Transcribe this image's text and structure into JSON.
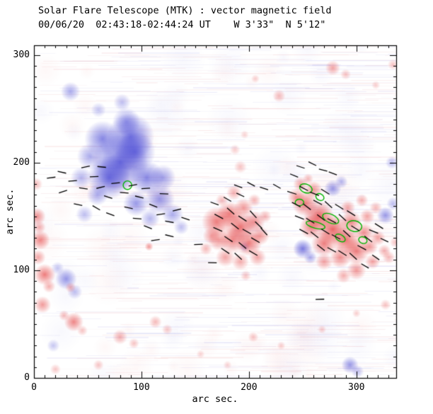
{
  "chart_data": {
    "type": "heatmap",
    "title": "Solar Flare Telescope (MTK) : vector magnetic field",
    "subtitle": "00/06/20  02:43:18-02:44:24 UT    W 3'33\"  N 5'12\"",
    "xlabel": "arc sec.",
    "ylabel": "arc sec.",
    "xlim": [
      0,
      337
    ],
    "ylim": [
      0,
      309
    ],
    "xticks": [
      0,
      100,
      200,
      300
    ],
    "yticks": [
      0,
      100,
      200,
      300
    ],
    "colors": {
      "positive_polarity": "#e43737",
      "negative_polarity": "#4646d4",
      "contour": "#00b400",
      "vector": "#000000",
      "frame": "#000000",
      "background": "#ffffff"
    },
    "negative_blobs": [
      [
        80,
        200,
        26,
        0.8
      ],
      [
        70,
        186,
        20,
        0.75
      ],
      [
        94,
        210,
        19,
        0.7
      ],
      [
        64,
        222,
        17,
        0.65
      ],
      [
        90,
        224,
        22,
        0.75
      ],
      [
        86,
        238,
        13,
        0.5
      ],
      [
        105,
        186,
        16,
        0.65
      ],
      [
        117,
        166,
        14,
        0.55
      ],
      [
        129,
        152,
        10,
        0.45
      ],
      [
        52,
        206,
        12,
        0.45
      ],
      [
        95,
        162,
        12,
        0.55
      ],
      [
        59,
        170,
        10,
        0.45
      ],
      [
        44,
        186,
        10,
        0.4
      ],
      [
        108,
        148,
        9,
        0.4
      ],
      [
        82,
        256,
        8,
        0.35
      ],
      [
        34,
        266,
        9,
        0.45
      ],
      [
        60,
        249,
        7,
        0.3
      ],
      [
        120,
        186,
        12,
        0.5
      ],
      [
        137,
        140,
        7,
        0.35
      ],
      [
        47,
        152,
        8,
        0.35
      ],
      [
        30,
        92,
        10,
        0.55
      ],
      [
        38,
        80,
        7,
        0.35
      ],
      [
        22,
        102,
        6,
        0.3
      ],
      [
        18,
        30,
        6,
        0.3
      ],
      [
        250,
        120,
        9,
        0.7
      ],
      [
        257,
        112,
        6,
        0.45
      ],
      [
        196,
        122,
        5,
        0.4
      ],
      [
        278,
        176,
        8,
        0.55
      ],
      [
        286,
        182,
        6,
        0.4
      ],
      [
        327,
        151,
        8,
        0.55
      ],
      [
        334,
        162,
        6,
        0.35
      ],
      [
        333,
        200,
        6,
        0.35
      ],
      [
        294,
        12,
        8,
        0.55
      ],
      [
        301,
        6,
        6,
        0.35
      ]
    ],
    "positive_blobs": [
      [
        3,
        150,
        8,
        0.55
      ],
      [
        6,
        128,
        9,
        0.6
      ],
      [
        10,
        96,
        10,
        0.65
      ],
      [
        4,
        112,
        7,
        0.45
      ],
      [
        8,
        68,
        8,
        0.5
      ],
      [
        2,
        180,
        6,
        0.35
      ],
      [
        14,
        85,
        6,
        0.4
      ],
      [
        5,
        140,
        6,
        0.4
      ],
      [
        34,
        84,
        5,
        0.35
      ],
      [
        37,
        52,
        9,
        0.6
      ],
      [
        28,
        58,
        5,
        0.35
      ],
      [
        45,
        44,
        5,
        0.3
      ],
      [
        80,
        38,
        7,
        0.4
      ],
      [
        93,
        32,
        5,
        0.3
      ],
      [
        113,
        52,
        6,
        0.35
      ],
      [
        124,
        45,
        5,
        0.28
      ],
      [
        107,
        122,
        4,
        0.5
      ],
      [
        60,
        12,
        5,
        0.3
      ],
      [
        20,
        8,
        5,
        0.28
      ],
      [
        170,
        145,
        14,
        0.65
      ],
      [
        182,
        152,
        12,
        0.65
      ],
      [
        192,
        140,
        14,
        0.7
      ],
      [
        200,
        125,
        12,
        0.65
      ],
      [
        185,
        128,
        12,
        0.6
      ],
      [
        172,
        128,
        10,
        0.5
      ],
      [
        195,
        158,
        9,
        0.5
      ],
      [
        205,
        145,
        10,
        0.55
      ],
      [
        178,
        112,
        9,
        0.45
      ],
      [
        192,
        108,
        8,
        0.4
      ],
      [
        208,
        112,
        8,
        0.45
      ],
      [
        210,
        132,
        9,
        0.5
      ],
      [
        165,
        132,
        8,
        0.45
      ],
      [
        160,
        120,
        6,
        0.35
      ],
      [
        205,
        165,
        6,
        0.38
      ],
      [
        215,
        150,
        6,
        0.38
      ],
      [
        197,
        95,
        5,
        0.3
      ],
      [
        186,
        172,
        7,
        0.4
      ],
      [
        175,
        165,
        6,
        0.35
      ],
      [
        192,
        196,
        6,
        0.3
      ],
      [
        187,
        212,
        5,
        0.25
      ],
      [
        196,
        226,
        4,
        0.22
      ],
      [
        252,
        162,
        12,
        0.65
      ],
      [
        265,
        150,
        14,
        0.75
      ],
      [
        278,
        138,
        14,
        0.75
      ],
      [
        290,
        128,
        13,
        0.7
      ],
      [
        300,
        118,
        12,
        0.65
      ],
      [
        285,
        112,
        10,
        0.55
      ],
      [
        270,
        125,
        12,
        0.65
      ],
      [
        258,
        140,
        11,
        0.6
      ],
      [
        295,
        145,
        10,
        0.6
      ],
      [
        307,
        135,
        9,
        0.55
      ],
      [
        312,
        122,
        8,
        0.5
      ],
      [
        300,
        100,
        9,
        0.5
      ],
      [
        288,
        95,
        7,
        0.4
      ],
      [
        315,
        108,
        7,
        0.45
      ],
      [
        270,
        108,
        8,
        0.45
      ],
      [
        260,
        175,
        8,
        0.5
      ],
      [
        248,
        180,
        7,
        0.45
      ],
      [
        320,
        130,
        7,
        0.45
      ],
      [
        326,
        118,
        6,
        0.4
      ],
      [
        310,
        150,
        7,
        0.45
      ],
      [
        318,
        158,
        6,
        0.35
      ],
      [
        305,
        165,
        6,
        0.4
      ],
      [
        292,
        158,
        7,
        0.45
      ],
      [
        330,
        112,
        6,
        0.35
      ],
      [
        336,
        126,
        5,
        0.3
      ],
      [
        244,
        168,
        8,
        0.5
      ],
      [
        255,
        185,
        5,
        0.35
      ],
      [
        278,
        288,
        7,
        0.45
      ],
      [
        290,
        282,
        5,
        0.3
      ],
      [
        228,
        262,
        6,
        0.35
      ],
      [
        206,
        278,
        4,
        0.25
      ],
      [
        334,
        291,
        5,
        0.3
      ],
      [
        318,
        272,
        4,
        0.25
      ],
      [
        204,
        38,
        5,
        0.3
      ],
      [
        230,
        30,
        4,
        0.25
      ],
      [
        268,
        45,
        4,
        0.25
      ],
      [
        327,
        68,
        5,
        0.3
      ],
      [
        300,
        60,
        4,
        0.25
      ],
      [
        155,
        22,
        4,
        0.22
      ],
      [
        180,
        12,
        4,
        0.22
      ]
    ],
    "vectors": [
      [
        16,
        186,
        8,
        8
      ],
      [
        26,
        191,
        -12,
        8
      ],
      [
        36,
        183,
        5,
        8
      ],
      [
        27,
        173,
        18,
        8
      ],
      [
        46,
        176,
        -8,
        8
      ],
      [
        56,
        187,
        2,
        8
      ],
      [
        62,
        177,
        14,
        8
      ],
      [
        69,
        168,
        -18,
        8
      ],
      [
        76,
        181,
        6,
        8
      ],
      [
        84,
        172,
        -4,
        8
      ],
      [
        92,
        179,
        10,
        8
      ],
      [
        98,
        168,
        -14,
        8
      ],
      [
        104,
        176,
        4,
        8
      ],
      [
        88,
        158,
        168,
        8
      ],
      [
        71,
        152,
        160,
        8
      ],
      [
        96,
        148,
        176,
        8
      ],
      [
        111,
        160,
        -22,
        8
      ],
      [
        118,
        152,
        8,
        8
      ],
      [
        126,
        145,
        -10,
        8
      ],
      [
        133,
        156,
        14,
        8
      ],
      [
        141,
        148,
        -18,
        8
      ],
      [
        121,
        171,
        178,
        8
      ],
      [
        58,
        158,
        150,
        8
      ],
      [
        41,
        161,
        168,
        8
      ],
      [
        106,
        140,
        158,
        8
      ],
      [
        113,
        128,
        8,
        8
      ],
      [
        126,
        132,
        -14,
        8
      ],
      [
        63,
        196,
        -6,
        8
      ],
      [
        48,
        196,
        12,
        8
      ],
      [
        172,
        150,
        -28,
        9
      ],
      [
        183,
        155,
        -42,
        9
      ],
      [
        194,
        148,
        -33,
        9
      ],
      [
        204,
        152,
        -48,
        9
      ],
      [
        187,
        141,
        -38,
        9
      ],
      [
        198,
        136,
        -30,
        9
      ],
      [
        209,
        142,
        -44,
        9
      ],
      [
        181,
        129,
        -34,
        9
      ],
      [
        194,
        123,
        -40,
        9
      ],
      [
        206,
        128,
        -30,
        9
      ],
      [
        214,
        136,
        -48,
        9
      ],
      [
        171,
        138,
        -24,
        9
      ],
      [
        178,
        118,
        -34,
        9
      ],
      [
        190,
        113,
        -42,
        9
      ],
      [
        204,
        116,
        -30,
        9
      ],
      [
        168,
        162,
        -20,
        8
      ],
      [
        180,
        166,
        -30,
        8
      ],
      [
        192,
        170,
        -25,
        8
      ],
      [
        190,
        178,
        -20,
        8
      ],
      [
        202,
        180,
        -28,
        8
      ],
      [
        214,
        176,
        -18,
        8
      ],
      [
        226,
        178,
        -30,
        8
      ],
      [
        240,
        172,
        -18,
        9
      ],
      [
        251,
        176,
        -28,
        9
      ],
      [
        261,
        171,
        -22,
        9
      ],
      [
        271,
        173,
        -32,
        9
      ],
      [
        244,
        161,
        -28,
        9
      ],
      [
        254,
        159,
        -38,
        9
      ],
      [
        264,
        163,
        -28,
        9
      ],
      [
        274,
        161,
        -42,
        9
      ],
      [
        284,
        159,
        -32,
        9
      ],
      [
        247,
        149,
        -22,
        9
      ],
      [
        257,
        146,
        -32,
        9
      ],
      [
        267,
        149,
        -38,
        9
      ],
      [
        277,
        146,
        -28,
        9
      ],
      [
        287,
        149,
        -42,
        9
      ],
      [
        295,
        153,
        -32,
        9
      ],
      [
        251,
        136,
        -28,
        9
      ],
      [
        261,
        133,
        -38,
        9
      ],
      [
        271,
        136,
        -32,
        9
      ],
      [
        281,
        131,
        -28,
        9
      ],
      [
        291,
        134,
        -42,
        9
      ],
      [
        299,
        139,
        -32,
        9
      ],
      [
        267,
        121,
        -38,
        9
      ],
      [
        277,
        119,
        -28,
        9
      ],
      [
        287,
        116,
        -32,
        9
      ],
      [
        297,
        113,
        -42,
        9
      ],
      [
        305,
        121,
        -28,
        9
      ],
      [
        311,
        129,
        -38,
        9
      ],
      [
        316,
        136,
        -22,
        9
      ],
      [
        321,
        141,
        -32,
        9
      ],
      [
        308,
        104,
        -30,
        8
      ],
      [
        318,
        112,
        -35,
        8
      ],
      [
        326,
        128,
        -25,
        8
      ],
      [
        248,
        196,
        -18,
        8
      ],
      [
        259,
        199,
        -26,
        8
      ],
      [
        269,
        193,
        -14,
        8
      ],
      [
        242,
        188,
        -22,
        8
      ],
      [
        278,
        190,
        -20,
        8
      ],
      [
        153,
        124,
        182,
        8
      ],
      [
        166,
        107,
        178,
        8
      ],
      [
        266,
        73,
        182,
        8
      ]
    ],
    "contours": [
      [
        87,
        179,
        4,
        4,
        0
      ],
      [
        253,
        176,
        6,
        4,
        -20
      ],
      [
        266,
        168,
        4,
        3,
        -30
      ],
      [
        276,
        148,
        8,
        4,
        -25
      ],
      [
        298,
        141,
        7,
        5,
        -10
      ],
      [
        262,
        142,
        9,
        3,
        -15
      ],
      [
        285,
        130,
        5,
        3,
        -30
      ],
      [
        247,
        163,
        4,
        3,
        0
      ],
      [
        306,
        128,
        4,
        3,
        -20
      ]
    ]
  }
}
